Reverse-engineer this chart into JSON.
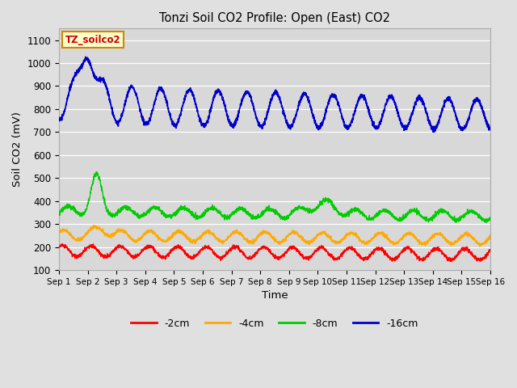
{
  "title": "Tonzi Soil CO2 Profile: Open (East) CO2",
  "xlabel": "Time",
  "ylabel": "Soil CO2 (mV)",
  "ylim": [
    100,
    1150
  ],
  "yticks": [
    100,
    200,
    300,
    400,
    500,
    600,
    700,
    800,
    900,
    1000,
    1100
  ],
  "background_color": "#e0e0e0",
  "plot_bg_color": "#d8d8d8",
  "grid_color": "#ffffff",
  "legend_labels": [
    "-2cm",
    "-4cm",
    "-8cm",
    "-16cm"
  ],
  "legend_colors": [
    "#ff0000",
    "#ffaa00",
    "#00cc00",
    "#0000cc"
  ],
  "annotation_text": "TZ_soilco2",
  "annotation_bg": "#ffffcc",
  "annotation_border": "#cc8800",
  "annotation_color": "#cc0000"
}
